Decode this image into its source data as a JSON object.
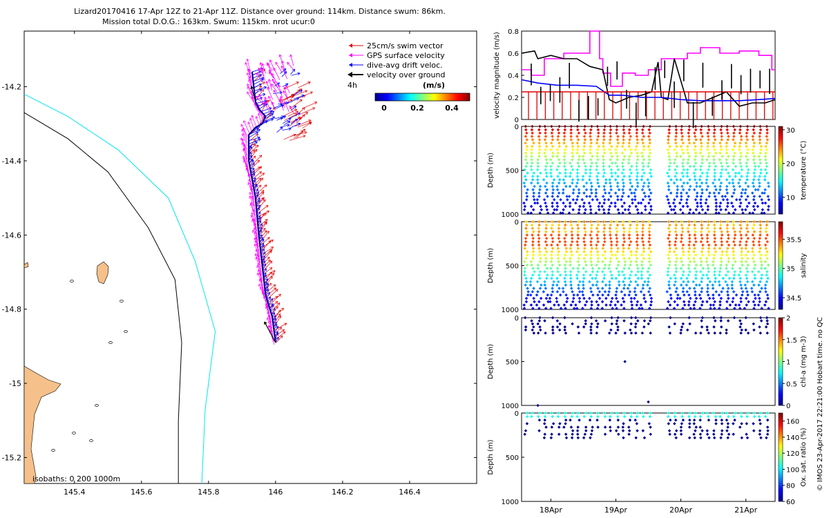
{
  "header": {
    "line1": "Lizard20170416 17-Apr 12Z to 21-Apr 11Z. Distance over ground: 114km. Distance swum: 86km.",
    "line2": "Mission total D.O.G.: 163km. Swum: 115km. nrot ucur:0"
  },
  "footer": {
    "stamp": "© IMOS 23-Apr-2017 22:21:00 Hobart time. no QC"
  },
  "colors": {
    "swim": "#e00000",
    "gps": "#ff00ff",
    "drift": "#0000ff",
    "ground": "#000000",
    "land": "#f5c08a",
    "iso200": "#000000",
    "iso1000": "#00e5ee"
  },
  "chart_data": [
    {
      "type": "scatter",
      "name": "map",
      "x_ticks": [
        "145.4",
        "145.6",
        "145.8",
        "146",
        "146.2",
        "146.4"
      ],
      "x_tick_values": [
        145.4,
        145.6,
        145.8,
        146.0,
        146.2,
        146.4
      ],
      "y_ticks": [
        "-14.2",
        "-14.4",
        "-14.6",
        "-14.8",
        "-15",
        "-15.2"
      ],
      "y_tick_values": [
        -14.2,
        -14.4,
        -14.6,
        -14.8,
        -15.0,
        -15.2
      ],
      "xlim": [
        145.25,
        146.6
      ],
      "ylim": [
        -15.27,
        -14.05
      ],
      "legend": {
        "placement": "top-right",
        "items": [
          "25cm/s swim vector",
          "GPS surface velocity",
          "dive-avg drift veloc.",
          "velocity over ground"
        ]
      },
      "time_label": "4h",
      "colorbar": {
        "title": "(m/s)",
        "ticks": [
          "0",
          "0.2",
          "0.4"
        ],
        "range": [
          0,
          0.5
        ]
      },
      "isobath_label": "isobaths: 0   200  1000m",
      "track": {
        "lon": [
          146.0,
          145.99,
          145.97,
          145.96,
          145.95,
          145.94,
          145.92,
          145.92,
          145.94,
          145.96,
          145.97,
          145.95,
          145.94,
          145.93
        ],
        "lat": [
          -14.89,
          -14.82,
          -14.76,
          -14.68,
          -14.6,
          -14.5,
          -14.4,
          -14.33,
          -14.31,
          -14.3,
          -14.28,
          -14.26,
          -14.24,
          -14.16
        ]
      },
      "isobath_200": {
        "lon": [
          145.25,
          145.38,
          145.5,
          145.62,
          145.7,
          145.72,
          145.71,
          145.71
        ],
        "lat": [
          -14.27,
          -14.34,
          -14.43,
          -14.58,
          -14.72,
          -14.89,
          -15.1,
          -15.27
        ]
      },
      "isobath_1000": {
        "lon": [
          145.25,
          145.38,
          145.53,
          145.68,
          145.76,
          145.82,
          145.79,
          145.78
        ],
        "lat": [
          -14.22,
          -14.28,
          -14.37,
          -14.5,
          -14.67,
          -14.86,
          -15.07,
          -15.27
        ]
      }
    },
    {
      "type": "line",
      "name": "velocity",
      "ylabel": "velocity magnitude (m/s)",
      "ylim": [
        0,
        0.8
      ],
      "y_ticks": [
        "0",
        "0.2",
        "0.4",
        "0.6",
        "0.8"
      ],
      "x_range_days": [
        17.55,
        21.45
      ],
      "series": [
        {
          "name": "GPS surface velocity",
          "color": "#ff00ff",
          "t": [
            17.55,
            17.7,
            17.7,
            17.9,
            17.9,
            18.2,
            18.2,
            18.6,
            18.6,
            18.75,
            18.75,
            18.8,
            18.8,
            18.92,
            18.92,
            19.1,
            19.1,
            19.3,
            19.3,
            19.5,
            19.5,
            19.7,
            19.7,
            20.1,
            20.1,
            20.3,
            20.3,
            20.6,
            20.6,
            20.9,
            20.9,
            21.2,
            21.2,
            21.4,
            21.4,
            21.45
          ],
          "v": [
            0.45,
            0.45,
            0.4,
            0.4,
            0.55,
            0.55,
            0.6,
            0.6,
            0.8,
            0.8,
            0.55,
            0.55,
            0.42,
            0.42,
            0.3,
            0.3,
            0.42,
            0.42,
            0.4,
            0.4,
            0.45,
            0.45,
            0.55,
            0.55,
            0.6,
            0.6,
            0.65,
            0.65,
            0.6,
            0.6,
            0.62,
            0.62,
            0.58,
            0.58,
            0.45,
            0.45
          ]
        },
        {
          "name": "velocity over ground",
          "color": "#000000",
          "t": [
            17.55,
            17.75,
            17.8,
            18.0,
            18.2,
            18.4,
            18.6,
            18.8,
            18.9,
            19.0,
            19.2,
            19.4,
            19.55,
            19.65,
            19.7,
            19.8,
            19.9,
            20.1,
            20.3,
            20.5,
            20.7,
            20.9,
            21.1,
            21.3,
            21.45
          ],
          "v": [
            0.6,
            0.62,
            0.55,
            0.58,
            0.55,
            0.55,
            0.48,
            0.45,
            0.18,
            0.15,
            0.2,
            0.22,
            0.25,
            0.52,
            0.2,
            0.18,
            0.55,
            0.15,
            0.15,
            0.2,
            0.25,
            0.12,
            0.15,
            0.15,
            0.18
          ]
        },
        {
          "name": "dive-avg drift veloc.",
          "color": "#0000ff",
          "t": [
            17.55,
            17.8,
            18.1,
            18.4,
            18.7,
            18.9,
            19.1,
            19.4,
            19.7,
            20.0,
            20.3,
            20.6,
            20.9,
            21.2,
            21.45
          ],
          "v": [
            0.36,
            0.33,
            0.31,
            0.31,
            0.3,
            0.22,
            0.22,
            0.2,
            0.2,
            0.18,
            0.17,
            0.17,
            0.17,
            0.18,
            0.19
          ]
        },
        {
          "name": "25cm/s swim vector",
          "color": "#e00000",
          "t": [
            17.55,
            21.45
          ],
          "v": [
            0.25,
            0.25
          ]
        }
      ]
    },
    {
      "type": "scatter",
      "name": "temperature",
      "ylabel": "Depth (m)",
      "y_ticks": [
        "0",
        "500",
        "1000"
      ],
      "ylim": [
        0,
        1000
      ],
      "colorbar_label": "temperature (°C)",
      "colorbar_ticks": [
        "10",
        "20",
        "30"
      ],
      "c_range": [
        5,
        31
      ],
      "profile_depth_max": 1000,
      "profiles": 38
    },
    {
      "type": "scatter",
      "name": "salinity",
      "ylabel": "Depth (m)",
      "y_ticks": [
        "0",
        "500",
        "1000"
      ],
      "ylim": [
        0,
        1000
      ],
      "colorbar_label": "salinity",
      "colorbar_ticks": [
        "34.5",
        "35",
        "35.5"
      ],
      "c_range": [
        34.3,
        35.8
      ],
      "profile_depth_max": 1000,
      "profiles": 38
    },
    {
      "type": "scatter",
      "name": "chl",
      "ylabel": "Depth (m)",
      "y_ticks": [
        "0",
        "500",
        "1000"
      ],
      "ylim": [
        0,
        1000
      ],
      "colorbar_label": "chl-a (mg m-3)",
      "colorbar_ticks": [
        "0",
        "0.5",
        "1",
        "1.5",
        "2"
      ],
      "c_range": [
        0,
        2
      ],
      "profile_depth_max": 200
    },
    {
      "type": "scatter",
      "name": "oxygen",
      "ylabel": "Depth (m)",
      "y_ticks": [
        "0",
        "500",
        "1000"
      ],
      "ylim": [
        0,
        1000
      ],
      "colorbar_label": "Ox. sat. ratio (%)",
      "colorbar_ticks": [
        "60",
        "80",
        "100",
        "120",
        "140",
        "160"
      ],
      "c_range": [
        60,
        170
      ],
      "profile_depth_max": 280,
      "x_ticks": [
        "18Apr",
        "19Apr",
        "20Apr",
        "21Apr"
      ],
      "x_tick_days": [
        18,
        19,
        20,
        21
      ]
    }
  ]
}
